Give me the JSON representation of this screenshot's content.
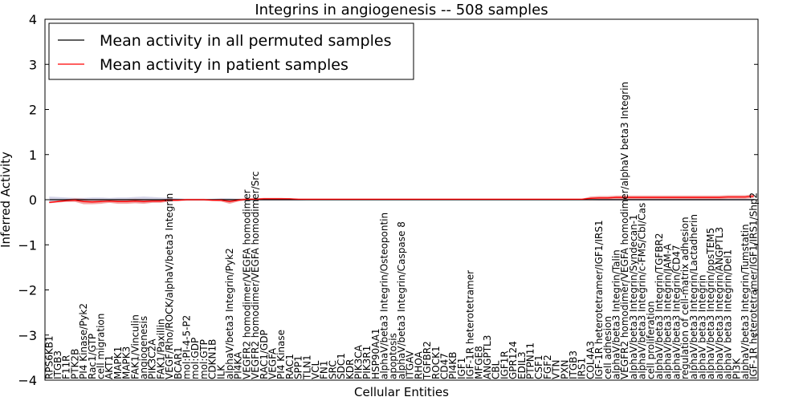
{
  "chart_data": {
    "type": "line",
    "title": "Integrins in angiogenesis -- 508 samples",
    "xlabel": "Cellular Entities",
    "ylabel": "Inferred Activity",
    "ylim": [
      -4,
      4
    ],
    "yticks": [
      -4,
      -3,
      -2,
      -1,
      0,
      1,
      2,
      3,
      4
    ],
    "ytick_labels": [
      "−4",
      "−3",
      "−2",
      "−1",
      "0",
      "1",
      "2",
      "3",
      "4"
    ],
    "legend_position": "top-left",
    "categories": [
      "RPS6KB1",
      "ITGB3",
      "F11R",
      "PTK2B",
      "PI4 Kinase/Pyk2",
      "Rac1/GTP",
      "cell migration",
      "AKT1",
      "MAPK1",
      "MAPK3",
      "FAK1/Vinculin",
      "angiogenesis",
      "PIK3C2A",
      "FAK1/Paxillin",
      "VEGF/Rho/ROCK/alphaV/beta3 Integrin",
      "BCAR1",
      "mol:PI-4-5-P2",
      "mol:GDP",
      "mol:GTP",
      "CDKN1B",
      "ILK",
      "alphaV/beta3 Integrin/Pyk2",
      "PI4KA",
      "VEGFR2 homodimer/VEGFA homodimer",
      "VEGFR2 homodimer/VEGFA homodimer/Src",
      "RAC1/GDP",
      "VEGFA",
      "PI4 Kinase",
      "RAC1",
      "SPP1",
      "TLN1",
      "VCL",
      "FN1",
      "SRC",
      "SDC1",
      "KDR",
      "PIK3CA",
      "PIK3R1",
      "HSP90AA1",
      "alphaV/beta3 Integrin/Osteopontin",
      "apoptosis",
      "alphaV/beta3 Integrin/Caspase 8",
      "ITGAV",
      "RHOA",
      "TGFBR2",
      "ROCK1",
      "CD47",
      "PI4KB",
      "IGF1",
      "IGF-1R heterotetramer",
      "MFGE8",
      "ANGPTL3",
      "CBL",
      "IGF1R",
      "GPR124",
      "EDIL3",
      "PTPN11",
      "CSF1",
      "FGF2",
      "VTN",
      "PXN",
      "ITGB3",
      "IRS1",
      "COL4A3",
      "IGF-1R heterotetramer/IGF1/IRS1",
      "cell adhesion",
      "alphaV/beta3 Integrin/Talin",
      "VEGFR2 homodimer/VEGFA homodimer/alphaV beta3 Integrin",
      "alphaV/beta3 Integrin/Syndecan-1",
      "alphaV/beta3 Integrin/c-FMS/CbI/Cas",
      "cell proliferation",
      "alphaV/beta3 Integrin/TGFBR2",
      "alphaV/beta3 Integrin/JAM-A",
      "alphaV/beta3 Integrin/CD47",
      "regulation of cell-matrix adhesion",
      "alphaV/beta3 Integrin/Lactadherin",
      "alphaV beta3 Integrin",
      "alphaV/beta3 Integrin/ppsTEM5",
      "alphaV/beta3 Integrin/ANGPTL3",
      "alphaV beta3 Integrin/Del1",
      "PI3K",
      "alphaV/beta3 Integrin/Tumstatin",
      "IGF-1R heterotetramer/IGF1/IRS1/Shp2"
    ],
    "series": [
      {
        "name": "Mean activity in all permuted samples",
        "color": "#000000",
        "values": [
          0.0,
          0.0,
          0.0,
          0.0,
          0.0,
          0.0,
          0.0,
          0.0,
          0.0,
          0.0,
          0.0,
          0.0,
          0.0,
          0.0,
          0.0,
          0.0,
          0.0,
          0.0,
          0.0,
          0.0,
          0.0,
          0.0,
          0.0,
          0.0,
          0.0,
          0.0,
          0.0,
          0.0,
          0.0,
          0.0,
          0.0,
          0.0,
          0.0,
          0.0,
          0.0,
          0.0,
          0.0,
          0.0,
          0.0,
          0.0,
          0.0,
          0.0,
          0.0,
          0.0,
          0.0,
          0.0,
          0.0,
          0.0,
          0.0,
          0.0,
          0.0,
          0.0,
          0.0,
          0.0,
          0.0,
          0.0,
          0.0,
          0.0,
          0.0,
          0.0,
          0.0,
          0.0,
          0.0,
          0.0,
          0.0,
          0.0,
          0.0,
          0.0,
          0.0,
          0.0,
          0.0,
          0.0,
          0.0,
          0.0,
          0.0,
          0.0,
          0.0,
          0.0,
          0.0,
          0.0,
          0.0,
          0.0,
          0.0
        ],
        "band": [
          0.07,
          0.06,
          0.05,
          0.04,
          0.04,
          0.05,
          0.05,
          0.04,
          0.05,
          0.05,
          0.06,
          0.07,
          0.06,
          0.05,
          0.04,
          0.03,
          0.02,
          0.02,
          0.02,
          0.02,
          0.03,
          0.03,
          0.02,
          0.02,
          0.02,
          0.02,
          0.02,
          0.02,
          0.02,
          0.02,
          0.01,
          0.01,
          0.01,
          0.01,
          0.01,
          0.01,
          0.01,
          0.01,
          0.01,
          0.01,
          0.01,
          0.01,
          0.01,
          0.01,
          0.01,
          0.01,
          0.01,
          0.01,
          0.01,
          0.01,
          0.01,
          0.01,
          0.01,
          0.01,
          0.01,
          0.01,
          0.01,
          0.01,
          0.01,
          0.01,
          0.01,
          0.01,
          0.01,
          0.01,
          0.02,
          0.02,
          0.02,
          0.02,
          0.02,
          0.02,
          0.02,
          0.02,
          0.02,
          0.02,
          0.02,
          0.02,
          0.02,
          0.02,
          0.02,
          0.02,
          0.02,
          0.02,
          0.02
        ]
      },
      {
        "name": "Mean activity in patient samples",
        "color": "#ff0000",
        "values": [
          -0.06,
          -0.04,
          -0.02,
          -0.01,
          -0.04,
          -0.05,
          -0.04,
          -0.03,
          -0.04,
          -0.04,
          -0.03,
          -0.04,
          -0.03,
          -0.03,
          -0.01,
          -0.01,
          0.0,
          0.0,
          0.0,
          -0.01,
          -0.01,
          -0.04,
          -0.01,
          0.01,
          0.01,
          0.02,
          0.02,
          0.02,
          0.02,
          0.01,
          0.01,
          0.01,
          0.01,
          0.01,
          0.01,
          0.01,
          0.01,
          0.01,
          0.01,
          0.01,
          0.01,
          0.01,
          0.01,
          0.01,
          0.01,
          0.01,
          0.01,
          0.01,
          0.01,
          0.01,
          0.01,
          0.01,
          0.01,
          0.01,
          0.01,
          0.01,
          0.01,
          0.01,
          0.01,
          0.01,
          0.01,
          0.01,
          0.01,
          0.03,
          0.04,
          0.04,
          0.05,
          0.05,
          0.05,
          0.05,
          0.05,
          0.05,
          0.05,
          0.05,
          0.05,
          0.05,
          0.05,
          0.05,
          0.05,
          0.06,
          0.06,
          0.06,
          0.08
        ],
        "band": [
          0.02,
          0.02,
          0.03,
          0.04,
          0.06,
          0.05,
          0.05,
          0.04,
          0.05,
          0.05,
          0.05,
          0.05,
          0.04,
          0.04,
          0.03,
          0.02,
          0.02,
          0.02,
          0.02,
          0.02,
          0.03,
          0.05,
          0.03,
          0.02,
          0.02,
          0.02,
          0.02,
          0.02,
          0.01,
          0.01,
          0.01,
          0.01,
          0.01,
          0.01,
          0.01,
          0.01,
          0.01,
          0.01,
          0.01,
          0.01,
          0.01,
          0.01,
          0.01,
          0.01,
          0.01,
          0.01,
          0.01,
          0.01,
          0.01,
          0.01,
          0.01,
          0.01,
          0.01,
          0.01,
          0.01,
          0.01,
          0.01,
          0.01,
          0.01,
          0.01,
          0.01,
          0.01,
          0.01,
          0.04,
          0.04,
          0.04,
          0.04,
          0.04,
          0.04,
          0.04,
          0.04,
          0.04,
          0.04,
          0.04,
          0.04,
          0.04,
          0.04,
          0.04,
          0.04,
          0.04,
          0.04,
          0.04,
          0.04
        ]
      }
    ]
  }
}
